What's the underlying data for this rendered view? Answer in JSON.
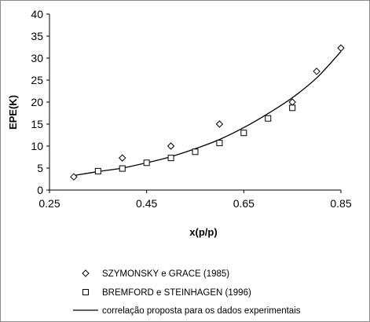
{
  "chart_data": {
    "type": "scatter",
    "xlabel": "x(p/p)",
    "ylabel": "EPE(K)",
    "xlim": [
      0.25,
      0.85
    ],
    "ylim": [
      0,
      40
    ],
    "x_ticks": [
      0.25,
      0.45,
      0.65,
      0.85
    ],
    "x_tick_labels": [
      "0.25",
      "0.45",
      "0.65",
      "0.85"
    ],
    "y_ticks": [
      0,
      5,
      10,
      15,
      20,
      25,
      30,
      35,
      40
    ],
    "y_tick_labels": [
      "0",
      "5",
      "10",
      "15",
      "20",
      "25",
      "30",
      "35",
      "40"
    ],
    "grid": false,
    "legend_position": "bottom",
    "series": [
      {
        "name": "SZYMONSKY e GRACE (1985)",
        "marker": "diamond",
        "points": [
          {
            "x": 0.3,
            "y": 3.0
          },
          {
            "x": 0.4,
            "y": 7.3
          },
          {
            "x": 0.5,
            "y": 10.0
          },
          {
            "x": 0.6,
            "y": 15.0
          },
          {
            "x": 0.75,
            "y": 20.0
          },
          {
            "x": 0.8,
            "y": 27.0
          },
          {
            "x": 0.85,
            "y": 32.3
          }
        ]
      },
      {
        "name": "BREMFORD e STEINHAGEN (1996)",
        "marker": "square",
        "points": [
          {
            "x": 0.35,
            "y": 4.3
          },
          {
            "x": 0.4,
            "y": 4.9
          },
          {
            "x": 0.45,
            "y": 6.2
          },
          {
            "x": 0.5,
            "y": 7.3
          },
          {
            "x": 0.55,
            "y": 8.7
          },
          {
            "x": 0.6,
            "y": 10.7
          },
          {
            "x": 0.65,
            "y": 13.0
          },
          {
            "x": 0.7,
            "y": 16.3
          },
          {
            "x": 0.75,
            "y": 18.7
          }
        ]
      },
      {
        "name": "correlação proposta para os dados experimentais",
        "marker": "line",
        "points": [
          {
            "x": 0.3,
            "y": 3.3
          },
          {
            "x": 0.35,
            "y": 4.2
          },
          {
            "x": 0.4,
            "y": 5.0
          },
          {
            "x": 0.45,
            "y": 6.2
          },
          {
            "x": 0.5,
            "y": 7.6
          },
          {
            "x": 0.55,
            "y": 9.4
          },
          {
            "x": 0.6,
            "y": 11.5
          },
          {
            "x": 0.65,
            "y": 14.2
          },
          {
            "x": 0.7,
            "y": 17.4
          },
          {
            "x": 0.75,
            "y": 21.0
          },
          {
            "x": 0.8,
            "y": 25.5
          },
          {
            "x": 0.85,
            "y": 31.5
          }
        ]
      }
    ]
  }
}
